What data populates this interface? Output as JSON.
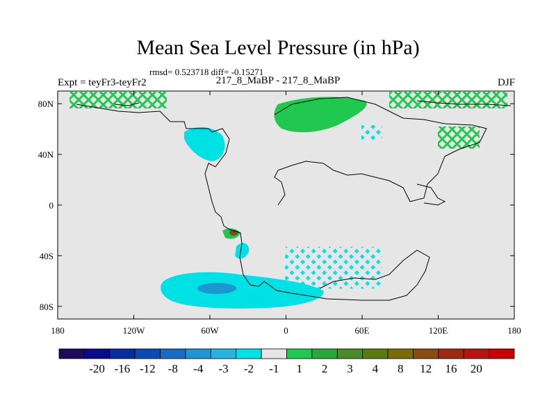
{
  "title": "Mean Sea Level Pressure (in hPa)",
  "stats": "rmsd= 0.523718 diff= -0.15271",
  "subtitle": "217_8_MaBP - 217_8_MaBP",
  "left_label": "Expt = teyFr3-teyFr2",
  "right_label": "DJF",
  "map": {
    "lon_range": [
      -180,
      180
    ],
    "lat_range": [
      -90,
      90
    ],
    "background": "#e6e6e6",
    "lon_ticks": [
      {
        "value": -180,
        "label": "180"
      },
      {
        "value": -120,
        "label": "120W"
      },
      {
        "value": -60,
        "label": "60W"
      },
      {
        "value": 0,
        "label": "0"
      },
      {
        "value": 60,
        "label": "60E"
      },
      {
        "value": 120,
        "label": "120E"
      },
      {
        "value": 180,
        "label": "180"
      }
    ],
    "lat_ticks": [
      {
        "value": 80,
        "label": "80N"
      },
      {
        "value": 40,
        "label": "40N"
      },
      {
        "value": 0,
        "label": "0"
      },
      {
        "value": -40,
        "label": "40S"
      },
      {
        "value": -80,
        "label": "80S"
      }
    ]
  },
  "colorbar": {
    "colors": [
      "#1e0a5a",
      "#0a0a8c",
      "#0a2aa0",
      "#0a4ab4",
      "#1a6ac8",
      "#1e96d2",
      "#28b4e0",
      "#00e1e6",
      "#e6e6e6",
      "#20c850",
      "#28a838",
      "#4a8a28",
      "#5a7a10",
      "#7a6a08",
      "#8a4a10",
      "#a02a10",
      "#b41414",
      "#c80000"
    ],
    "labels": [
      "-20",
      "-16",
      "-12",
      "-8",
      "-4",
      "-3",
      "-2",
      "-1",
      "1",
      "2",
      "3",
      "4",
      "8",
      "12",
      "16",
      "20"
    ]
  }
}
